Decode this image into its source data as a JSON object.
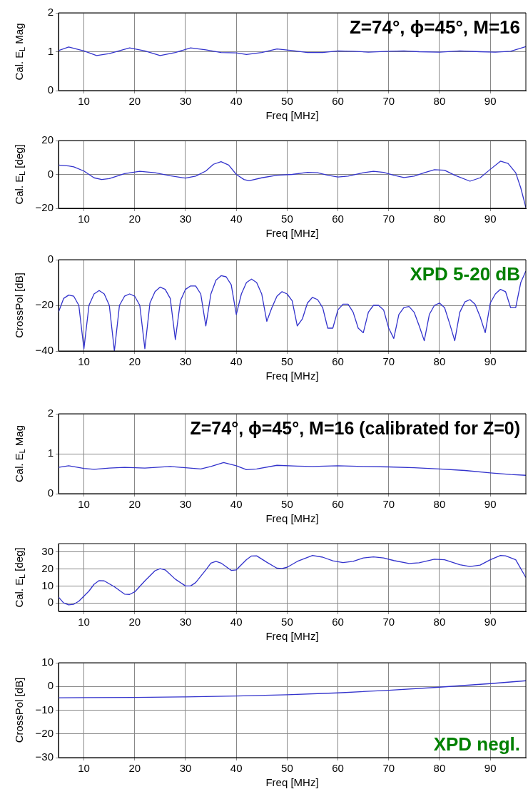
{
  "chart_data": [
    {
      "type": "line",
      "xlabel": "Freq [MHz]",
      "ylabel": "Cal. E$_{L}$ Mag",
      "annotations": [
        "Z=74°, ϕ=45°, M=16"
      ],
      "xlim": [
        5,
        97
      ],
      "xticks": [
        10,
        20,
        30,
        40,
        50,
        60,
        70,
        80,
        90
      ],
      "ylim": [
        0,
        2
      ],
      "yticks": [
        0,
        1,
        2
      ],
      "grid": true,
      "legend": false,
      "marker": "none",
      "x": [
        5,
        7,
        10,
        12.5,
        15,
        19,
        22,
        25,
        28,
        31,
        34,
        37,
        40,
        42,
        45,
        48,
        51,
        54,
        57,
        60,
        63,
        66,
        70,
        73,
        76,
        80,
        84,
        88,
        91,
        94,
        97
      ],
      "series": [
        {
          "color": "#3333cc",
          "values": [
            1.03,
            1.12,
            1.02,
            0.9,
            0.95,
            1.1,
            1.02,
            0.9,
            0.98,
            1.1,
            1.05,
            0.98,
            0.97,
            0.93,
            0.98,
            1.07,
            1.03,
            0.98,
            0.98,
            1.02,
            1.01,
            0.99,
            1.01,
            1.02,
            1.0,
            0.99,
            1.02,
            1.0,
            0.99,
            1.01,
            1.13
          ]
        }
      ]
    },
    {
      "type": "line",
      "xlabel": "Freq [MHz]",
      "ylabel": "Cal. E$_{L}$ [deg]",
      "xlim": [
        5,
        97
      ],
      "xticks": [
        10,
        20,
        30,
        40,
        50,
        60,
        70,
        80,
        90
      ],
      "ylim": [
        -20,
        20
      ],
      "yticks": [
        -20,
        0,
        20
      ],
      "grid": true,
      "legend": false,
      "marker": "none",
      "x": [
        5,
        7,
        8,
        10,
        12,
        13.5,
        15,
        18,
        21,
        24,
        27,
        30,
        32,
        34,
        35.5,
        37,
        38.5,
        40,
        41.5,
        42.5,
        45,
        48,
        51,
        54,
        56,
        58,
        60,
        62,
        65,
        67,
        69,
        71,
        73,
        75,
        77,
        79,
        81,
        83,
        86,
        88,
        90,
        92,
        93.5,
        95,
        96,
        97
      ],
      "series": [
        {
          "color": "#3333cc",
          "values": [
            5.5,
            5,
            4.5,
            2,
            -2,
            -3,
            -2.5,
            0.5,
            1.8,
            1,
            -0.8,
            -2.2,
            -1,
            2,
            6,
            7.5,
            5.5,
            0,
            -3,
            -3.7,
            -2,
            -0.5,
            0,
            1.2,
            1,
            -0.5,
            -1.5,
            -1,
            1,
            1.8,
            1.2,
            -0.5,
            -1.8,
            -1,
            1,
            2.8,
            2.5,
            -0.5,
            -4,
            -2,
            3,
            7.8,
            6.5,
            1,
            -8,
            -19.5
          ]
        }
      ]
    },
    {
      "type": "line",
      "xlabel": "Freq [MHz]",
      "ylabel": "CrossPol [dB]",
      "annotations": [
        "XPD 5-20 dB"
      ],
      "xlim": [
        5,
        97
      ],
      "xticks": [
        10,
        20,
        30,
        40,
        50,
        60,
        70,
        80,
        90
      ],
      "ylim": [
        -40,
        0
      ],
      "yticks": [
        -40,
        -20,
        0
      ],
      "grid": true,
      "legend": false,
      "marker": "none",
      "x": [
        5,
        6,
        7,
        8,
        9,
        10,
        11,
        12,
        13,
        14,
        15,
        16,
        17,
        18,
        19,
        20,
        21,
        22,
        23,
        24,
        25,
        26,
        27,
        28,
        29,
        30,
        31,
        32,
        33,
        34,
        35,
        36,
        37,
        38,
        39,
        40,
        41,
        42,
        43,
        44,
        45,
        46,
        47,
        48,
        49,
        50,
        51,
        52,
        53,
        54,
        55,
        56,
        57,
        58,
        59,
        60,
        61,
        62,
        63,
        64,
        65,
        66,
        67,
        68,
        69,
        70,
        71,
        72,
        73,
        74,
        75,
        76,
        77,
        78,
        79,
        80,
        81,
        82,
        83,
        84,
        85,
        86,
        87,
        88,
        89,
        90,
        91,
        92,
        93,
        94,
        95,
        96,
        97
      ],
      "series": [
        {
          "color": "#3333cc",
          "values": [
            -23,
            -17,
            -15.5,
            -16,
            -20,
            -39,
            -20,
            -15,
            -13.5,
            -15,
            -20,
            -40,
            -20,
            -16,
            -15,
            -16,
            -20,
            -39,
            -19,
            -14,
            -12,
            -13,
            -17,
            -35,
            -18,
            -13,
            -11.5,
            -11.5,
            -15,
            -29,
            -15,
            -9,
            -7,
            -7.5,
            -11,
            -24,
            -15,
            -10,
            -8.5,
            -10,
            -15,
            -27,
            -21,
            -16,
            -14,
            -15,
            -18,
            -29,
            -26,
            -19,
            -16.5,
            -17.5,
            -21,
            -30,
            -30,
            -22,
            -19.5,
            -19.5,
            -23,
            -30,
            -32,
            -23,
            -20,
            -20,
            -22,
            -30,
            -34.5,
            -24,
            -21,
            -20.5,
            -23,
            -29,
            -35.5,
            -24,
            -20,
            -19,
            -21,
            -28,
            -35.5,
            -23,
            -18.5,
            -17.5,
            -19.5,
            -25,
            -32,
            -19,
            -15,
            -13,
            -14,
            -21,
            -21,
            -10,
            -5
          ]
        }
      ]
    },
    {
      "type": "line",
      "xlabel": "Freq [MHz]",
      "ylabel": "Cal. E$_{L}$ Mag",
      "annotations": [
        "Z=74°, ϕ=45°, M=16 (calibrated for Z=0)"
      ],
      "xlim": [
        5,
        97
      ],
      "xticks": [
        10,
        20,
        30,
        40,
        50,
        60,
        70,
        80,
        90
      ],
      "ylim": [
        0,
        2
      ],
      "yticks": [
        0,
        1,
        2
      ],
      "grid": true,
      "legend": false,
      "marker": "none",
      "x": [
        5,
        7,
        10,
        12,
        15,
        18,
        22,
        27,
        30,
        33,
        35,
        37.5,
        40,
        42,
        44,
        48,
        52,
        55,
        60,
        65,
        70,
        75,
        80,
        85,
        90,
        94,
        97
      ],
      "series": [
        {
          "color": "#3333cc",
          "values": [
            0.66,
            0.7,
            0.63,
            0.61,
            0.64,
            0.66,
            0.64,
            0.68,
            0.65,
            0.62,
            0.68,
            0.78,
            0.7,
            0.6,
            0.62,
            0.71,
            0.69,
            0.68,
            0.7,
            0.68,
            0.67,
            0.65,
            0.62,
            0.58,
            0.52,
            0.48,
            0.46
          ]
        }
      ]
    },
    {
      "type": "line",
      "xlabel": "Freq [MHz]",
      "ylabel": "Cal. E$_{L}$ [deg]",
      "xlim": [
        5,
        97
      ],
      "xticks": [
        10,
        20,
        30,
        40,
        50,
        60,
        70,
        80,
        90
      ],
      "ylim": [
        -5,
        35
      ],
      "yticks": [
        0,
        10,
        20,
        30
      ],
      "grid": true,
      "legend": false,
      "marker": "none",
      "x": [
        5,
        6,
        7,
        8,
        9,
        11,
        12,
        13,
        14,
        16,
        18,
        19,
        20,
        22,
        24,
        25,
        26,
        28,
        30,
        31,
        32,
        34,
        35,
        36,
        37,
        39,
        40,
        42,
        43,
        44,
        46,
        48,
        49,
        50,
        52,
        55,
        57,
        59,
        61,
        63,
        65,
        67,
        69,
        71,
        74,
        76,
        79,
        81,
        84,
        86,
        88,
        90,
        92,
        93,
        95,
        97
      ],
      "series": [
        {
          "color": "#3333cc",
          "values": [
            3.5,
            0,
            -1.2,
            -0.8,
            1,
            7,
            11,
            13.2,
            13,
            9.5,
            5.2,
            5,
            6.5,
            13,
            19,
            20.2,
            19.5,
            14,
            10,
            10,
            12,
            19.5,
            23.5,
            24.5,
            23.5,
            19.2,
            19.5,
            25.5,
            27.7,
            27.8,
            24,
            20.5,
            20.3,
            21,
            24.5,
            28,
            27,
            24.8,
            23.8,
            24.5,
            26.5,
            27.2,
            26.5,
            25,
            23.3,
            23.7,
            25.8,
            25.5,
            22.5,
            21.5,
            22.3,
            25.5,
            28,
            27.8,
            25.5,
            15
          ]
        }
      ]
    },
    {
      "type": "line",
      "xlabel": "Freq [MHz]",
      "ylabel": "CrossPol [dB]",
      "annotations": [
        "XPD negl."
      ],
      "xlim": [
        5,
        97
      ],
      "xticks": [
        10,
        20,
        30,
        40,
        50,
        60,
        70,
        80,
        90
      ],
      "ylim": [
        -30,
        10
      ],
      "yticks": [
        -30,
        -20,
        -10,
        0,
        10
      ],
      "grid": true,
      "legend": false,
      "marker": "none",
      "x": [
        5,
        10,
        20,
        30,
        40,
        50,
        60,
        70,
        80,
        90,
        97
      ],
      "series": [
        {
          "color": "#3333cc",
          "values": [
            -4.8,
            -4.7,
            -4.6,
            -4.4,
            -4,
            -3.5,
            -2.7,
            -1.6,
            -0.3,
            1.2,
            2.4
          ]
        }
      ]
    }
  ]
}
